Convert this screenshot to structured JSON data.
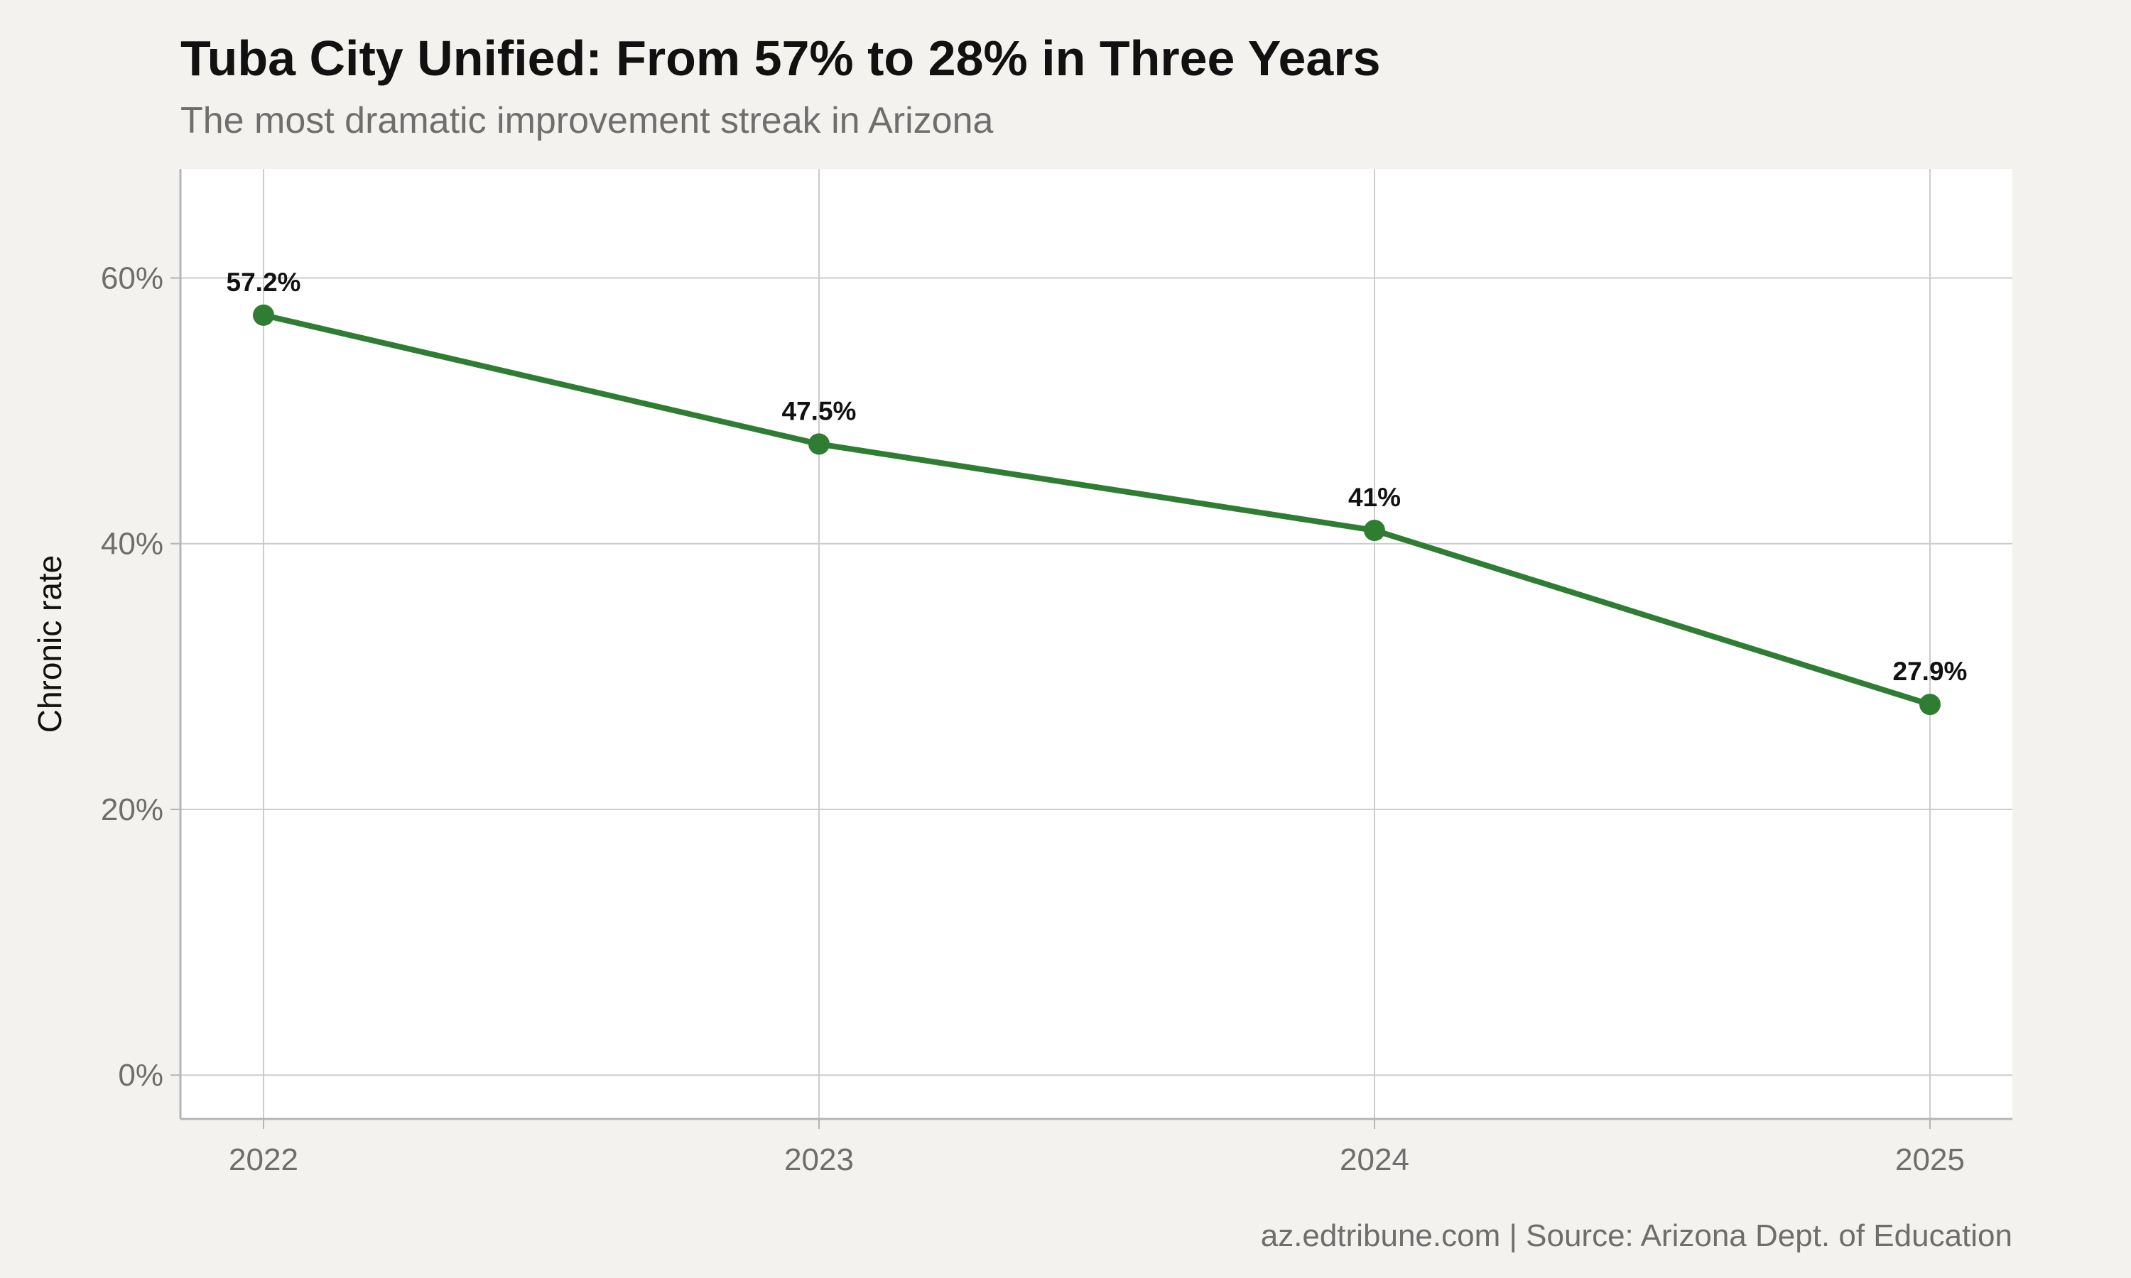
{
  "chart_data": {
    "type": "line",
    "title": "Tuba City Unified: From 57% to 28% in Three Years",
    "subtitle": "The most dramatic improvement streak in Arizona",
    "caption": "az.edtribune.com | Source: Arizona Dept. of Education",
    "xlabel": "",
    "ylabel": "Chronic rate",
    "x": [
      "2022",
      "2023",
      "2024",
      "2025"
    ],
    "series": [
      {
        "values": [
          57.2,
          47.5,
          41.0,
          27.9
        ],
        "data_labels": [
          "57.2%",
          "47.5%",
          "41%",
          "27.9%"
        ],
        "color": "#2e7d32"
      }
    ],
    "yticks": [
      0,
      20,
      40,
      60
    ],
    "ytick_labels": [
      "0%",
      "20%",
      "40%",
      "60%"
    ],
    "ylim": [
      -3.3,
      68.2
    ],
    "grid": true,
    "legend": "none",
    "colors": {
      "background": "#f4f2ee",
      "panel": "#ffffff",
      "grid": "#cccccc",
      "line": "#2e7d32"
    }
  }
}
